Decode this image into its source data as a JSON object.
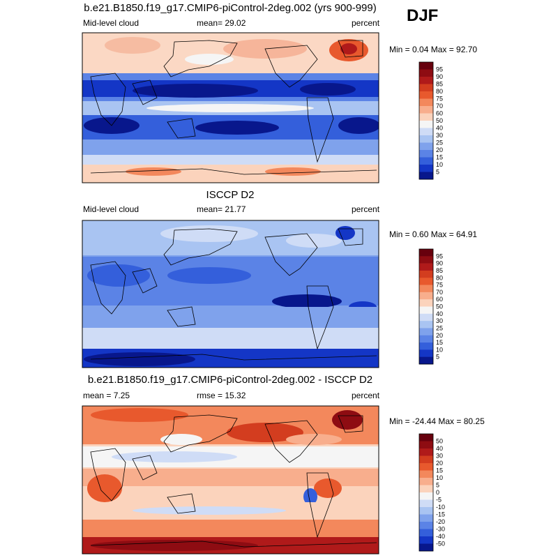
{
  "season": "DJF",
  "panels": [
    {
      "title": "b.e21.B1850.f19_g17.CMIP6-piControl-2deg.002 (yrs 900-999)",
      "left_label": "Mid-level cloud",
      "center_label": "mean=  29.02",
      "right_label": "percent",
      "minmax": "Min =  0.04 Max =  92.70",
      "colorbar": {
        "ticks": [
          "95",
          "90",
          "85",
          "80",
          "75",
          "70",
          "60",
          "50",
          "40",
          "30",
          "25",
          "20",
          "15",
          "10",
          "5"
        ],
        "colors": [
          "#67000d",
          "#8e0c12",
          "#b01a1a",
          "#d33d1f",
          "#e8592d",
          "#f3885c",
          "#f8ae8d",
          "#fbd3bc",
          "#f5f5f5",
          "#cfdcf6",
          "#a9c4f2",
          "#7fa2ec",
          "#5b83e6",
          "#345fdb",
          "#1436c6",
          "#08178c"
        ]
      }
    },
    {
      "title": "ISCCP D2",
      "left_label": "Mid-level cloud",
      "center_label": "mean=  21.77",
      "right_label": "percent",
      "minmax": "Min =  0.60 Max =  64.91",
      "colorbar": {
        "ticks": [
          "95",
          "90",
          "85",
          "80",
          "75",
          "70",
          "60",
          "50",
          "40",
          "30",
          "25",
          "20",
          "15",
          "10",
          "5"
        ],
        "colors": [
          "#67000d",
          "#8e0c12",
          "#b01a1a",
          "#d33d1f",
          "#e8592d",
          "#f3885c",
          "#f8ae8d",
          "#fbd3bc",
          "#f5f5f5",
          "#cfdcf6",
          "#a9c4f2",
          "#7fa2ec",
          "#5b83e6",
          "#345fdb",
          "#1436c6",
          "#08178c"
        ]
      }
    },
    {
      "title": "b.e21.B1850.f19_g17.CMIP6-piControl-2deg.002 - ISCCP D2",
      "left_label": "mean =   7.25",
      "center_label": "rmse =  15.32",
      "right_label": "percent",
      "minmax": "Min = -24.44 Max =  80.25",
      "colorbar": {
        "ticks": [
          "50",
          "40",
          "30",
          "20",
          "15",
          "10",
          "5",
          "0",
          "-5",
          "-10",
          "-15",
          "-20",
          "-30",
          "-40",
          "-50"
        ],
        "colors": [
          "#67000d",
          "#8e0c12",
          "#b01a1a",
          "#d33d1f",
          "#e8592d",
          "#f3885c",
          "#f8ae8d",
          "#fbd3bc",
          "#f5f5f5",
          "#cfdcf6",
          "#a9c4f2",
          "#7fa2ec",
          "#5b83e6",
          "#345fdb",
          "#1436c6",
          "#08178c"
        ]
      }
    }
  ]
}
